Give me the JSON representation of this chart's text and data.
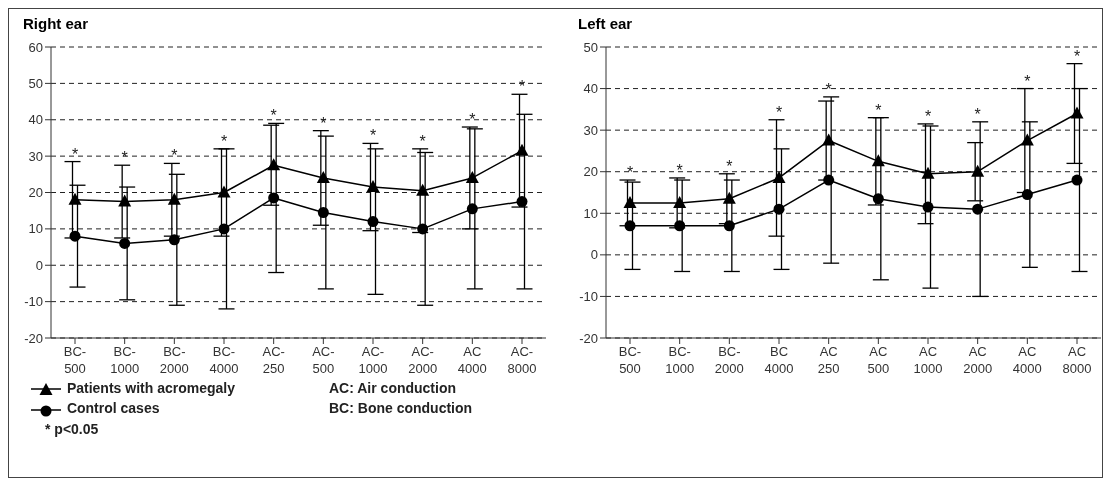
{
  "chart_data": [
    {
      "type": "line",
      "title": "Right ear",
      "categories": [
        "BC-500",
        "BC-1000",
        "BC-2000",
        "BC-4000",
        "AC-250",
        "AC-500",
        "AC-1000",
        "AC-2000",
        "AC 4000",
        "AC-8000"
      ],
      "series": [
        {
          "name": "Patients with acromegaly",
          "color": "#000000",
          "marker": "triangle",
          "values": [
            18,
            17.5,
            18,
            20,
            27.5,
            24,
            21.5,
            20.5,
            24,
            31.5
          ],
          "errors": [
            10.5,
            10,
            10,
            12,
            11,
            13,
            12,
            11.5,
            14,
            15.5
          ]
        },
        {
          "name": "Control cases",
          "color": "#000000",
          "marker": "circle",
          "values": [
            8,
            6,
            7,
            10,
            18.5,
            14.5,
            12,
            10,
            15.5,
            17.5
          ],
          "errors": [
            14,
            15.5,
            18,
            22,
            20.5,
            21,
            20,
            21,
            22,
            24
          ]
        }
      ],
      "ylim": [
        -20,
        60
      ],
      "yticks": [
        -20,
        -10,
        0,
        10,
        20,
        30,
        40,
        50,
        60
      ],
      "grid": "y",
      "legend": "bottom",
      "line_style": "solid",
      "annotations": [
        "*",
        "*",
        "*",
        "*",
        "*",
        "*",
        "*",
        "*",
        "*",
        "*",
        "AC: Air conduction",
        "BC: Bone conduction",
        "* p<0.05"
      ]
    },
    {
      "type": "line",
      "title": "Left ear",
      "categories": [
        "BC-500",
        "BC-1000",
        "BC-2000",
        "BC 4000",
        "AC 250",
        "AC 500",
        "AC 1000",
        "AC 2000",
        "AC 4000",
        "AC 8000"
      ],
      "series": [
        {
          "color": "#000000",
          "marker": "triangle",
          "values": [
            12.5,
            12.5,
            13.5,
            18.5,
            27.5,
            22.5,
            19.5,
            20,
            27.5,
            34
          ],
          "errors": [
            5.5,
            6,
            6,
            14,
            9.5,
            10.5,
            12,
            7,
            12.5,
            12
          ]
        },
        {
          "color": "#000000",
          "marker": "circle",
          "values": [
            7,
            7,
            7,
            11,
            18,
            13.5,
            11.5,
            11,
            14.5,
            18
          ],
          "errors": [
            10.5,
            11,
            11,
            14.5,
            20,
            19.5,
            19.5,
            21,
            17.5,
            22
          ]
        }
      ],
      "ylim": [
        -20,
        50
      ],
      "yticks": [
        -20,
        -10,
        0,
        10,
        20,
        30,
        40,
        50
      ],
      "grid": "y",
      "legend": false,
      "line_style": "solid",
      "annotations": [
        "*",
        "*",
        "*",
        "*",
        "*",
        "*",
        "*",
        "*",
        "*",
        "*"
      ]
    }
  ]
}
